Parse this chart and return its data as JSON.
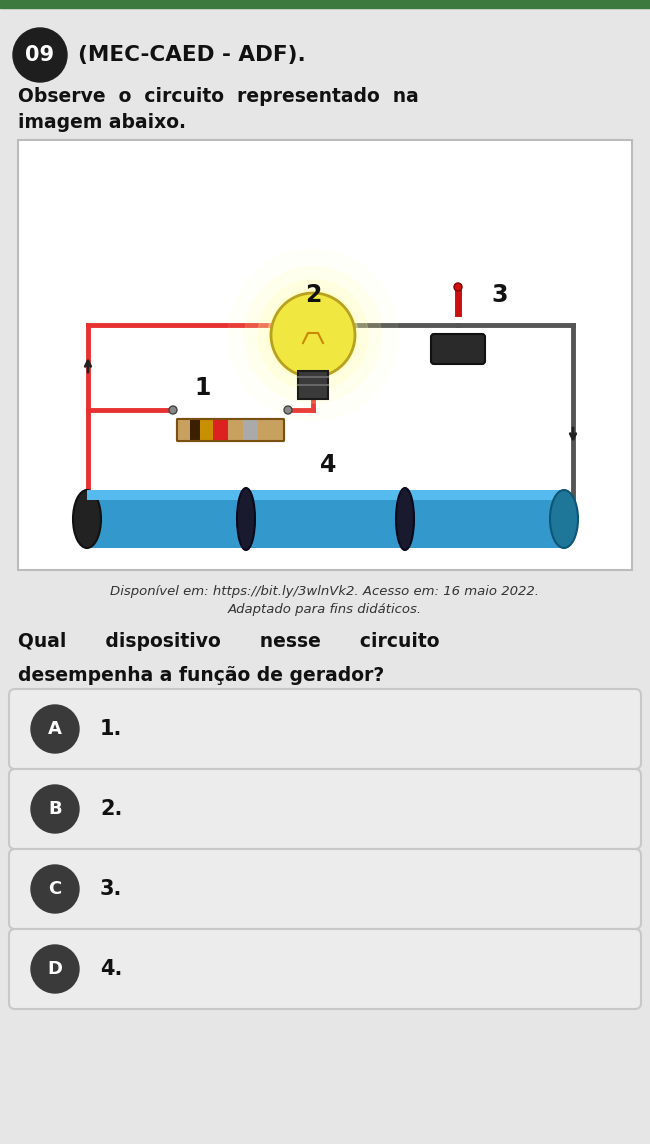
{
  "bg_color": "#e6e6e6",
  "question_number": "09",
  "question_source": "(MEC-CAED - ADF).",
  "question_intro_line1": "Observe  o  circuito  representado  na",
  "question_intro_line2": "imagem abaixo.",
  "caption_line1": "Disponível em: https://bit.ly/3wlnVk2. Acesso em: 16 maio 2022.",
  "caption_line2": "Adaptado para fins didáticos.",
  "question_text_line1": "Qual      dispositivo      nesse      circuito",
  "question_text_line2": "desempenha a função de gerador?",
  "options": [
    "1.",
    "2.",
    "3.",
    "4."
  ],
  "option_letters": [
    "A",
    "B",
    "C",
    "D"
  ],
  "top_bar_color": "#3d7a3d",
  "circle_bg": "#1e1e1e",
  "circle_text_color": "#ffffff",
  "option_circle_bg": "#3a3a3a",
  "option_box_bg": "#ececec",
  "option_box_border": "#c8c8c8",
  "image_border_color": "#bbbbbb",
  "image_bg": "#ffffff",
  "wire_red": "#e83030",
  "wire_gray": "#555555",
  "bulb_yellow": "#f5ee50",
  "bulb_glow": "#ffff99",
  "battery_blue": "#3399cc",
  "battery_dark": "#222222",
  "resistor_body": "#c8a060",
  "switch_dark": "#2a2a2a"
}
